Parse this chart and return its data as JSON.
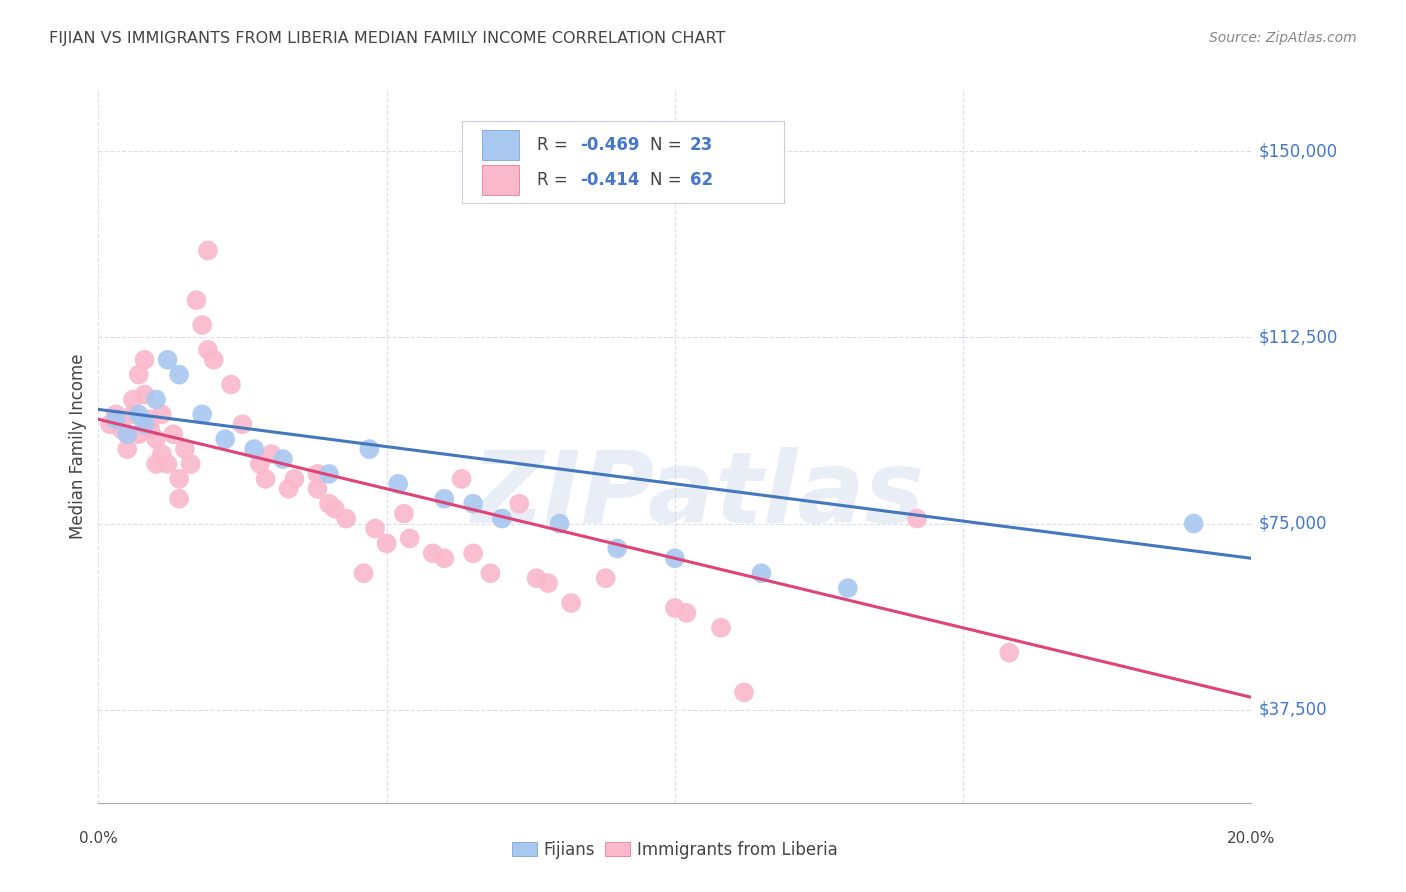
{
  "title": "FIJIAN VS IMMIGRANTS FROM LIBERIA MEDIAN FAMILY INCOME CORRELATION CHART",
  "source": "Source: ZipAtlas.com",
  "ylabel": "Median Family Income",
  "ytick_labels": [
    "$37,500",
    "$75,000",
    "$112,500",
    "$150,000"
  ],
  "ytick_values": [
    37500,
    75000,
    112500,
    150000
  ],
  "ymin": 18750,
  "ymax": 162500,
  "xmin": 0.0,
  "xmax": 0.2,
  "watermark": "ZIPatlas",
  "legend_blue_r": "R = -0.469",
  "legend_blue_n": "N = 23",
  "legend_pink_r": "R = -0.414",
  "legend_pink_n": "N = 62",
  "legend_blue_label": "Fijians",
  "legend_pink_label": "Immigrants from Liberia",
  "blue_fill": "#a8c8f0",
  "pink_fill": "#f9b8cc",
  "blue_edge": "#6699cc",
  "pink_edge": "#ee6688",
  "blue_line": "#4477bb",
  "pink_line": "#dd4477",
  "text_blue": "#4477cc",
  "text_dark": "#444444",
  "grid_color": "#ddddee",
  "blue_scatter": [
    [
      0.003,
      96000
    ],
    [
      0.005,
      93000
    ],
    [
      0.007,
      97000
    ],
    [
      0.008,
      95000
    ],
    [
      0.01,
      100000
    ],
    [
      0.012,
      108000
    ],
    [
      0.014,
      105000
    ],
    [
      0.018,
      97000
    ],
    [
      0.022,
      92000
    ],
    [
      0.027,
      90000
    ],
    [
      0.032,
      88000
    ],
    [
      0.04,
      85000
    ],
    [
      0.047,
      90000
    ],
    [
      0.052,
      83000
    ],
    [
      0.06,
      80000
    ],
    [
      0.065,
      79000
    ],
    [
      0.07,
      76000
    ],
    [
      0.08,
      75000
    ],
    [
      0.09,
      70000
    ],
    [
      0.1,
      68000
    ],
    [
      0.115,
      65000
    ],
    [
      0.13,
      62000
    ],
    [
      0.19,
      75000
    ]
  ],
  "pink_scatter": [
    [
      0.002,
      95000
    ],
    [
      0.003,
      97000
    ],
    [
      0.004,
      96000
    ],
    [
      0.004,
      94000
    ],
    [
      0.005,
      93000
    ],
    [
      0.005,
      90000
    ],
    [
      0.006,
      100000
    ],
    [
      0.006,
      97000
    ],
    [
      0.007,
      105000
    ],
    [
      0.007,
      93000
    ],
    [
      0.008,
      108000
    ],
    [
      0.008,
      101000
    ],
    [
      0.009,
      96000
    ],
    [
      0.009,
      94000
    ],
    [
      0.01,
      92000
    ],
    [
      0.01,
      87000
    ],
    [
      0.011,
      97000
    ],
    [
      0.011,
      89000
    ],
    [
      0.012,
      87000
    ],
    [
      0.013,
      93000
    ],
    [
      0.014,
      84000
    ],
    [
      0.014,
      80000
    ],
    [
      0.015,
      90000
    ],
    [
      0.016,
      87000
    ],
    [
      0.017,
      120000
    ],
    [
      0.018,
      115000
    ],
    [
      0.019,
      110000
    ],
    [
      0.019,
      130000
    ],
    [
      0.02,
      108000
    ],
    [
      0.023,
      103000
    ],
    [
      0.025,
      95000
    ],
    [
      0.028,
      87000
    ],
    [
      0.029,
      84000
    ],
    [
      0.03,
      89000
    ],
    [
      0.033,
      82000
    ],
    [
      0.034,
      84000
    ],
    [
      0.038,
      85000
    ],
    [
      0.038,
      82000
    ],
    [
      0.04,
      79000
    ],
    [
      0.041,
      78000
    ],
    [
      0.043,
      76000
    ],
    [
      0.046,
      65000
    ],
    [
      0.048,
      74000
    ],
    [
      0.05,
      71000
    ],
    [
      0.053,
      77000
    ],
    [
      0.054,
      72000
    ],
    [
      0.058,
      69000
    ],
    [
      0.06,
      68000
    ],
    [
      0.063,
      84000
    ],
    [
      0.065,
      69000
    ],
    [
      0.068,
      65000
    ],
    [
      0.073,
      79000
    ],
    [
      0.076,
      64000
    ],
    [
      0.078,
      63000
    ],
    [
      0.082,
      59000
    ],
    [
      0.088,
      64000
    ],
    [
      0.1,
      58000
    ],
    [
      0.102,
      57000
    ],
    [
      0.108,
      54000
    ],
    [
      0.112,
      41000
    ],
    [
      0.142,
      76000
    ],
    [
      0.158,
      49000
    ]
  ],
  "blue_trend_x": [
    0.0,
    0.2
  ],
  "blue_trend_y": [
    98000,
    68000
  ],
  "pink_trend_x": [
    0.0,
    0.2
  ],
  "pink_trend_y": [
    96000,
    40000
  ]
}
